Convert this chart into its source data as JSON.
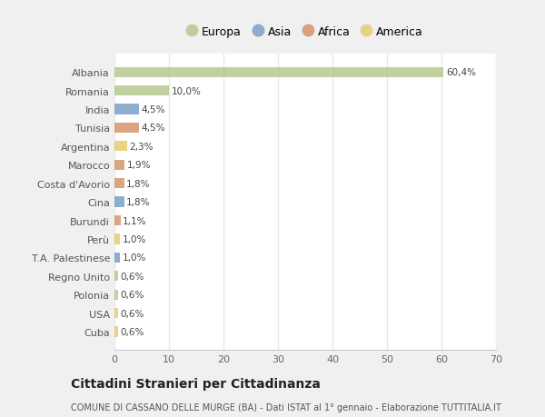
{
  "categories": [
    "Albania",
    "Romania",
    "India",
    "Tunisia",
    "Argentina",
    "Marocco",
    "Costa d'Avorio",
    "Cina",
    "Burundi",
    "Perù",
    "T.A. Palestinese",
    "Regno Unito",
    "Polonia",
    "USA",
    "Cuba"
  ],
  "values": [
    60.4,
    10.0,
    4.5,
    4.5,
    2.3,
    1.9,
    1.8,
    1.8,
    1.1,
    1.0,
    1.0,
    0.6,
    0.6,
    0.6,
    0.6
  ],
  "labels": [
    "60,4%",
    "10,0%",
    "4,5%",
    "4,5%",
    "2,3%",
    "1,9%",
    "1,8%",
    "1,8%",
    "1,1%",
    "1,0%",
    "1,0%",
    "0,6%",
    "0,6%",
    "0,6%",
    "0,6%"
  ],
  "continents": [
    "Europa",
    "Europa",
    "Asia",
    "Africa",
    "America",
    "Africa",
    "Africa",
    "Asia",
    "Africa",
    "America",
    "Asia",
    "Europa",
    "Europa",
    "America",
    "America"
  ],
  "continent_colors": {
    "Europa": "#b5c98e",
    "Asia": "#7b9fc7",
    "Africa": "#d4956a",
    "America": "#e8cc70"
  },
  "legend_entries": [
    "Europa",
    "Asia",
    "Africa",
    "America"
  ],
  "title": "Cittadini Stranieri per Cittadinanza",
  "subtitle": "COMUNE DI CASSANO DELLE MURGE (BA) - Dati ISTAT al 1° gennaio - Elaborazione TUTTITALIA.IT",
  "xlim": [
    0,
    70
  ],
  "xticks": [
    0,
    10,
    20,
    30,
    40,
    50,
    60,
    70
  ],
  "fig_bg_color": "#f0f0f0",
  "plot_bg_color": "#ffffff",
  "grid_color": "#e8e8e8",
  "bar_height": 0.55
}
